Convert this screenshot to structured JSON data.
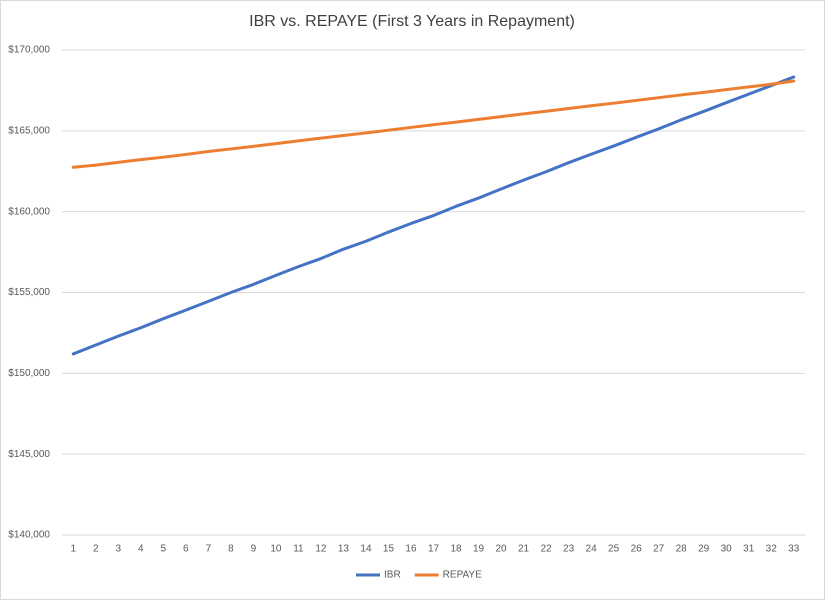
{
  "chart_data": {
    "type": "line",
    "title": "IBR vs. REPAYE (First 3 Years in Repayment)",
    "categories": [
      "1",
      "2",
      "3",
      "4",
      "5",
      "6",
      "7",
      "8",
      "9",
      "10",
      "11",
      "12",
      "13",
      "14",
      "15",
      "16",
      "17",
      "18",
      "19",
      "20",
      "21",
      "22",
      "23",
      "24",
      "25",
      "26",
      "27",
      "28",
      "29",
      "30",
      "31",
      "32",
      "33"
    ],
    "series": [
      {
        "name": "IBR",
        "color": "#4472c4",
        "values": [
          151200,
          151750,
          152300,
          152820,
          153380,
          153910,
          154450,
          155000,
          155500,
          156060,
          156600,
          157100,
          157680,
          158170,
          158740,
          159270,
          159760,
          160330,
          160840,
          161400,
          161950,
          162470,
          163030,
          163550,
          164060,
          164600,
          165120,
          165680,
          166200,
          166740,
          167270,
          167800,
          168330
        ]
      },
      {
        "name": "REPAYE",
        "color": "#ed7d31",
        "values": [
          162750,
          162880,
          163050,
          163220,
          163370,
          163540,
          163720,
          163880,
          164040,
          164210,
          164380,
          164550,
          164710,
          164870,
          165040,
          165210,
          165380,
          165540,
          165710,
          165880,
          166050,
          166210,
          166380,
          166550,
          166710,
          166880,
          167050,
          167220,
          167380,
          167550,
          167720,
          167880,
          168080
        ]
      }
    ],
    "ylim": [
      140000,
      170000
    ],
    "yticks": [
      {
        "value": 140000,
        "label": "$140,000"
      },
      {
        "value": 145000,
        "label": "$145,000"
      },
      {
        "value": 150000,
        "label": "$150,000"
      },
      {
        "value": 155000,
        "label": "$155,000"
      },
      {
        "value": 160000,
        "label": "$160,000"
      },
      {
        "value": 165000,
        "label": "$165,000"
      },
      {
        "value": 170000,
        "label": "$170,000"
      }
    ],
    "grid": true,
    "legend": "bottom"
  }
}
